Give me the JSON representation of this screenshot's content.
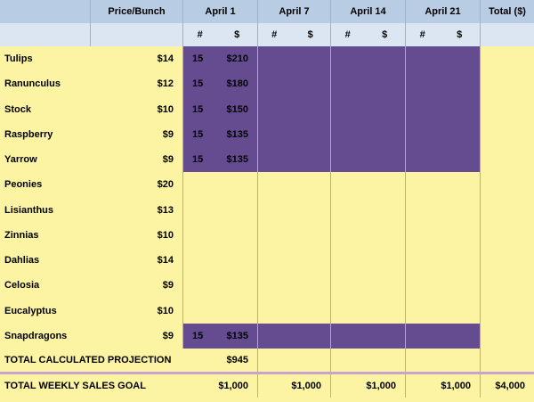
{
  "headers": {
    "price": "Price/Bunch",
    "weeks": [
      "April 1",
      "April 7",
      "April 14",
      "April 21"
    ],
    "total": "Total ($)",
    "count_symbol": "#",
    "dollar_symbol": "$"
  },
  "rows": [
    {
      "name": "Tulips",
      "price": "$14",
      "count": "15",
      "amount": "$210"
    },
    {
      "name": "Ranunculus",
      "price": "$12",
      "count": "15",
      "amount": "$180"
    },
    {
      "name": "Stock",
      "price": "$10",
      "count": "15",
      "amount": "$150"
    },
    {
      "name": "Raspberry",
      "price": "$9",
      "count": "15",
      "amount": "$135"
    },
    {
      "name": "Yarrow",
      "price": "$9",
      "count": "15",
      "amount": "$135"
    },
    {
      "name": "Peonies",
      "price": "$20"
    },
    {
      "name": "Lisianthus",
      "price": "$13"
    },
    {
      "name": "Zinnias",
      "price": "$10"
    },
    {
      "name": "Dahlias",
      "price": "$14"
    },
    {
      "name": "Celosia",
      "price": "$9"
    },
    {
      "name": "Eucalyptus",
      "price": "$10"
    },
    {
      "name": "Snapdragons",
      "price": "$9",
      "count": "15",
      "amount": "$135"
    }
  ],
  "projection": {
    "label": "TOTAL CALCULATED PROJECTION",
    "april1": "$945"
  },
  "goal": {
    "label": "TOTAL WEEKLY SALES GOAL",
    "weeks": [
      "$1,000",
      "$1,000",
      "$1,000",
      "$1,000"
    ],
    "total": "$4,000"
  },
  "colors": {
    "header": "#b8cce4",
    "subheader": "#dce6f2",
    "cell": "#fdf4a3",
    "highlight": "#654c91",
    "divider": "#c6a4cf"
  }
}
